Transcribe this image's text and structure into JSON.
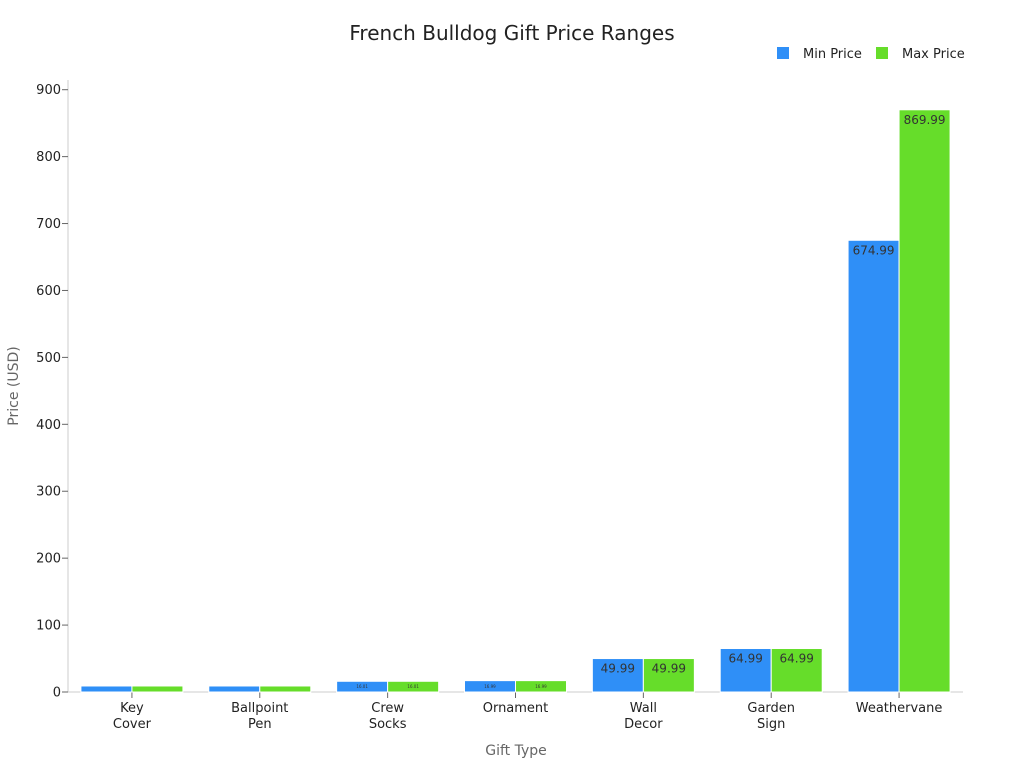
{
  "chart_data": {
    "type": "bar",
    "title": "French Bulldog Gift Price Ranges",
    "xlabel": "Gift Type",
    "ylabel": "Price (USD)",
    "categories": [
      [
        "Key",
        "Cover"
      ],
      [
        "Ballpoint",
        "Pen"
      ],
      [
        "Crew",
        "Socks"
      ],
      [
        "Ornament"
      ],
      [
        "Wall",
        "Decor"
      ],
      [
        "Garden",
        "Sign"
      ],
      [
        "Weathervane"
      ]
    ],
    "series": [
      {
        "name": "Min Price",
        "color": "#2f8ff7",
        "values": [
          8.99,
          8.99,
          16.01,
          16.99,
          49.99,
          64.99,
          674.99
        ]
      },
      {
        "name": "Max Price",
        "color": "#66dd2a",
        "values": [
          8.99,
          8.99,
          16.01,
          16.99,
          49.99,
          64.99,
          869.99
        ]
      }
    ],
    "value_labels": [
      [
        "",
        "",
        "16.01",
        "16.99",
        "49.99",
        "64.99",
        "674.99"
      ],
      [
        "",
        "",
        "16.01",
        "16.99",
        "49.99",
        "64.99",
        "869.99"
      ]
    ],
    "ylim": [
      0,
      920
    ],
    "yticks": [
      0,
      100,
      200,
      300,
      400,
      500,
      600,
      700,
      800,
      900
    ],
    "grid": false,
    "legend_position": "top-right"
  }
}
